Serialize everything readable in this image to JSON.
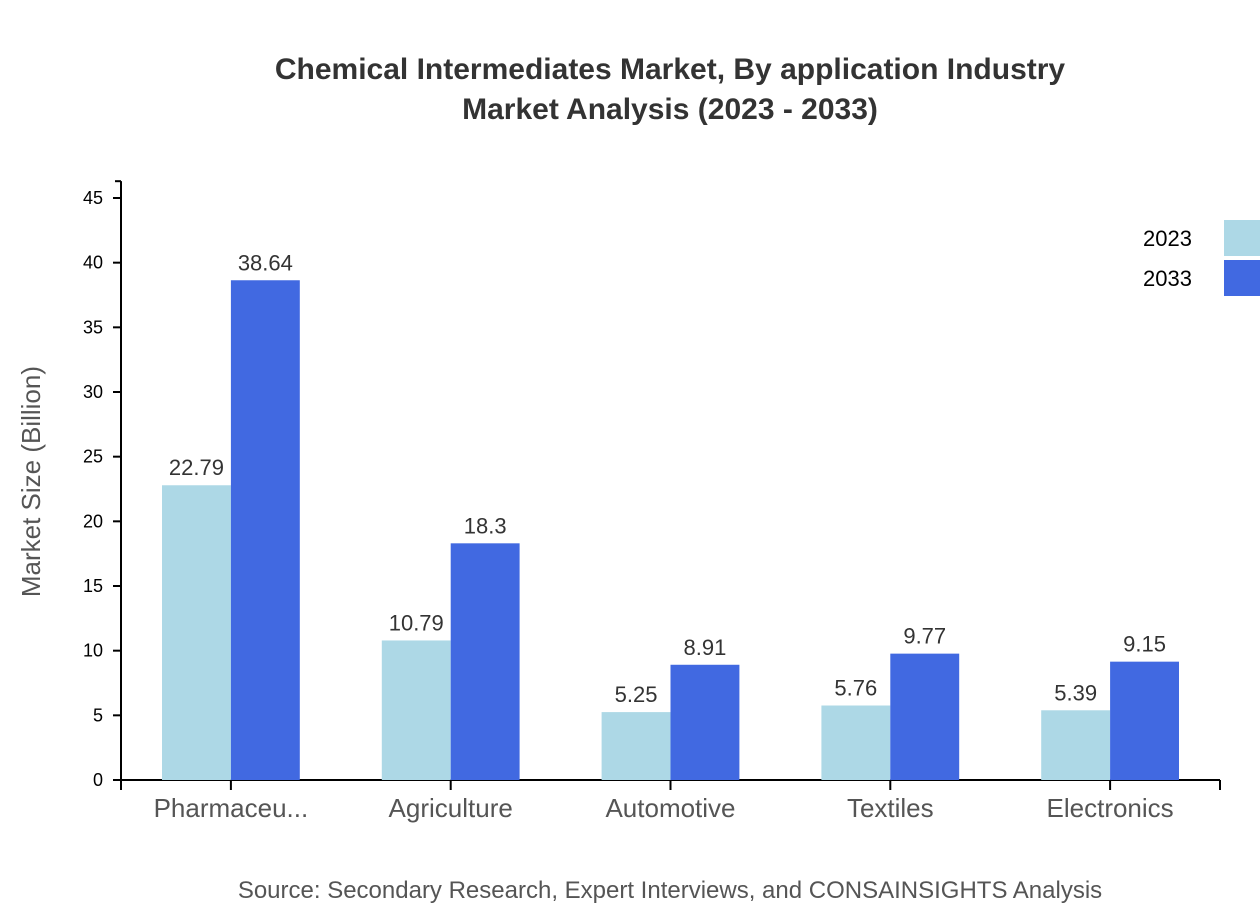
{
  "chart_data": {
    "type": "bar",
    "title": "Chemical Intermediates Market, By application Industry",
    "subtitle": "Market Analysis (2023 - 2033)",
    "xlabel": "",
    "ylabel": "Market Size (Billion)",
    "categories": [
      "Pharmaceu...",
      "Agriculture",
      "Automotive",
      "Textiles",
      "Electronics"
    ],
    "series": [
      {
        "name": "2023",
        "color": "#add8e6",
        "values": [
          22.79,
          10.79,
          5.25,
          5.76,
          5.39
        ]
      },
      {
        "name": "2033",
        "color": "#4169e1",
        "values": [
          38.64,
          18.3,
          8.91,
          9.77,
          9.15
        ]
      }
    ],
    "yticks": [
      0,
      5,
      10,
      15,
      20,
      25,
      30,
      35,
      40,
      45
    ],
    "ylim": [
      0,
      46.3
    ],
    "grid": false,
    "legend": "top-right",
    "source": "Source: Secondary Research, Expert Interviews, and CONSAINSIGHTS Analysis"
  }
}
